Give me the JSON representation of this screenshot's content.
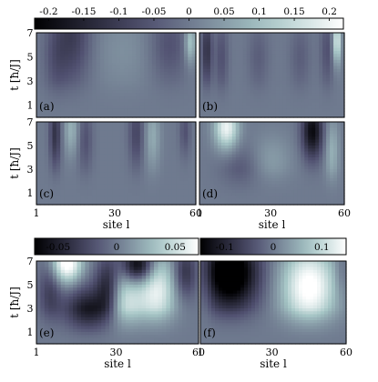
{
  "chart_data": {
    "type": "heatmap",
    "colormap": "bone",
    "colorbars": [
      {
        "id": "top",
        "range": [
          -0.22,
          0.22
        ],
        "ticks": [
          -0.2,
          -0.15,
          -0.1,
          -0.05,
          0,
          0.05,
          0.1,
          0.15,
          0.2
        ],
        "tick_labels": [
          "-0.2",
          "-0.15",
          "-0.1",
          "-0.05",
          "0",
          "0.05",
          "0.1",
          "0.15",
          "0.2"
        ]
      },
      {
        "id": "e",
        "range": [
          -0.07,
          0.07
        ],
        "ticks": [
          -0.05,
          0,
          0.05
        ],
        "tick_labels": [
          "-0.05",
          "0",
          "0.05"
        ]
      },
      {
        "id": "f",
        "range": [
          -0.15,
          0.15
        ],
        "ticks": [
          -0.1,
          0,
          0.1
        ],
        "tick_labels": [
          "-0.1",
          "0",
          "0.1"
        ]
      }
    ],
    "ylabel": "t  [ħ/J]",
    "xlabel": "site l",
    "xlim": [
      1,
      60
    ],
    "ylim": [
      0,
      7
    ],
    "yticks": [
      1,
      3,
      5,
      7
    ],
    "xticks": [
      1,
      30,
      60
    ],
    "panels": [
      {
        "label": "(a)",
        "colorbar": "top",
        "features": [
          {
            "l": 14,
            "t": 6.8,
            "sl": 5,
            "st": 2.8,
            "v": -0.1
          },
          {
            "l": 8,
            "t": 4.5,
            "sl": 3,
            "st": 2.2,
            "v": -0.04
          },
          {
            "l": 33,
            "t": 5.5,
            "sl": 8,
            "st": 2.5,
            "v": 0.03
          },
          {
            "l": 50,
            "t": 6.0,
            "sl": 5,
            "st": 2.2,
            "v": -0.06
          },
          {
            "l": 58,
            "t": 6.2,
            "sl": 1.5,
            "st": 1.2,
            "v": 0.12
          }
        ]
      },
      {
        "label": "(b)",
        "colorbar": "top",
        "features": [
          {
            "l": 4,
            "t": 5.5,
            "sl": 1.5,
            "st": 2.0,
            "v": -0.12
          },
          {
            "l": 10,
            "t": 5.0,
            "sl": 2.0,
            "st": 2.2,
            "v": -0.06
          },
          {
            "l": 25,
            "t": 5.0,
            "sl": 3.0,
            "st": 2.0,
            "v": -0.04
          },
          {
            "l": 42,
            "t": 5.0,
            "sl": 3.0,
            "st": 2.0,
            "v": -0.04
          },
          {
            "l": 53,
            "t": 5.5,
            "sl": 2.0,
            "st": 2.2,
            "v": -0.06
          },
          {
            "l": 57,
            "t": 6.3,
            "sl": 1.2,
            "st": 1.3,
            "v": 0.18
          }
        ]
      },
      {
        "label": "(c)",
        "colorbar": "top",
        "features": [
          {
            "l": 8,
            "t": 6.0,
            "sl": 1.5,
            "st": 2.0,
            "v": -0.12
          },
          {
            "l": 14,
            "t": 6.3,
            "sl": 2.0,
            "st": 1.5,
            "v": 0.08
          },
          {
            "l": 19,
            "t": 5.5,
            "sl": 2.0,
            "st": 2.0,
            "v": -0.06
          },
          {
            "l": 38,
            "t": 6.0,
            "sl": 2.0,
            "st": 2.0,
            "v": -0.08
          },
          {
            "l": 44,
            "t": 5.8,
            "sl": 2.0,
            "st": 2.0,
            "v": 0.07
          },
          {
            "l": 56,
            "t": 6.2,
            "sl": 1.5,
            "st": 1.5,
            "v": -0.06
          }
        ]
      },
      {
        "label": "(d)",
        "colorbar": "top",
        "features": [
          {
            "l": 12,
            "t": 6.5,
            "sl": 3.5,
            "st": 1.3,
            "v": 0.2
          },
          {
            "l": 18,
            "t": 3.0,
            "sl": 6.0,
            "st": 1.5,
            "v": -0.05
          },
          {
            "l": 30,
            "t": 3.8,
            "sl": 6.0,
            "st": 1.5,
            "v": 0.05
          },
          {
            "l": 47,
            "t": 6.2,
            "sl": 3.0,
            "st": 1.6,
            "v": -0.2
          },
          {
            "l": 55,
            "t": 4.5,
            "sl": 2.0,
            "st": 2.0,
            "v": 0.08
          }
        ]
      },
      {
        "label": "(e)",
        "colorbar": "e",
        "features": [
          {
            "l": 12,
            "t": 6.8,
            "sl": 4.0,
            "st": 1.2,
            "v": 0.08
          },
          {
            "l": 6,
            "t": 4.5,
            "sl": 3.0,
            "st": 2.0,
            "v": -0.03
          },
          {
            "l": 20,
            "t": 2.5,
            "sl": 6.0,
            "st": 1.6,
            "v": -0.06
          },
          {
            "l": 27,
            "t": 4.8,
            "sl": 3.0,
            "st": 1.8,
            "v": -0.05
          },
          {
            "l": 33,
            "t": 3.5,
            "sl": 5.0,
            "st": 2.0,
            "v": 0.05
          },
          {
            "l": 38,
            "t": 6.6,
            "sl": 4.0,
            "st": 1.0,
            "v": -0.08
          },
          {
            "l": 45,
            "t": 4.5,
            "sl": 5.0,
            "st": 2.2,
            "v": 0.06
          },
          {
            "l": 55,
            "t": 6.0,
            "sl": 3.0,
            "st": 1.5,
            "v": -0.04
          }
        ]
      },
      {
        "label": "(f)",
        "colorbar": "f",
        "features": [
          {
            "l": 13,
            "t": 6.0,
            "sl": 8.0,
            "st": 2.2,
            "v": -0.2
          },
          {
            "l": 45,
            "t": 4.8,
            "sl": 8.0,
            "st": 2.4,
            "v": 0.16
          },
          {
            "l": 3,
            "t": 5.0,
            "sl": 2.0,
            "st": 2.0,
            "v": 0.03
          },
          {
            "l": 58,
            "t": 6.0,
            "sl": 2.0,
            "st": 1.5,
            "v": -0.03
          }
        ]
      }
    ]
  }
}
